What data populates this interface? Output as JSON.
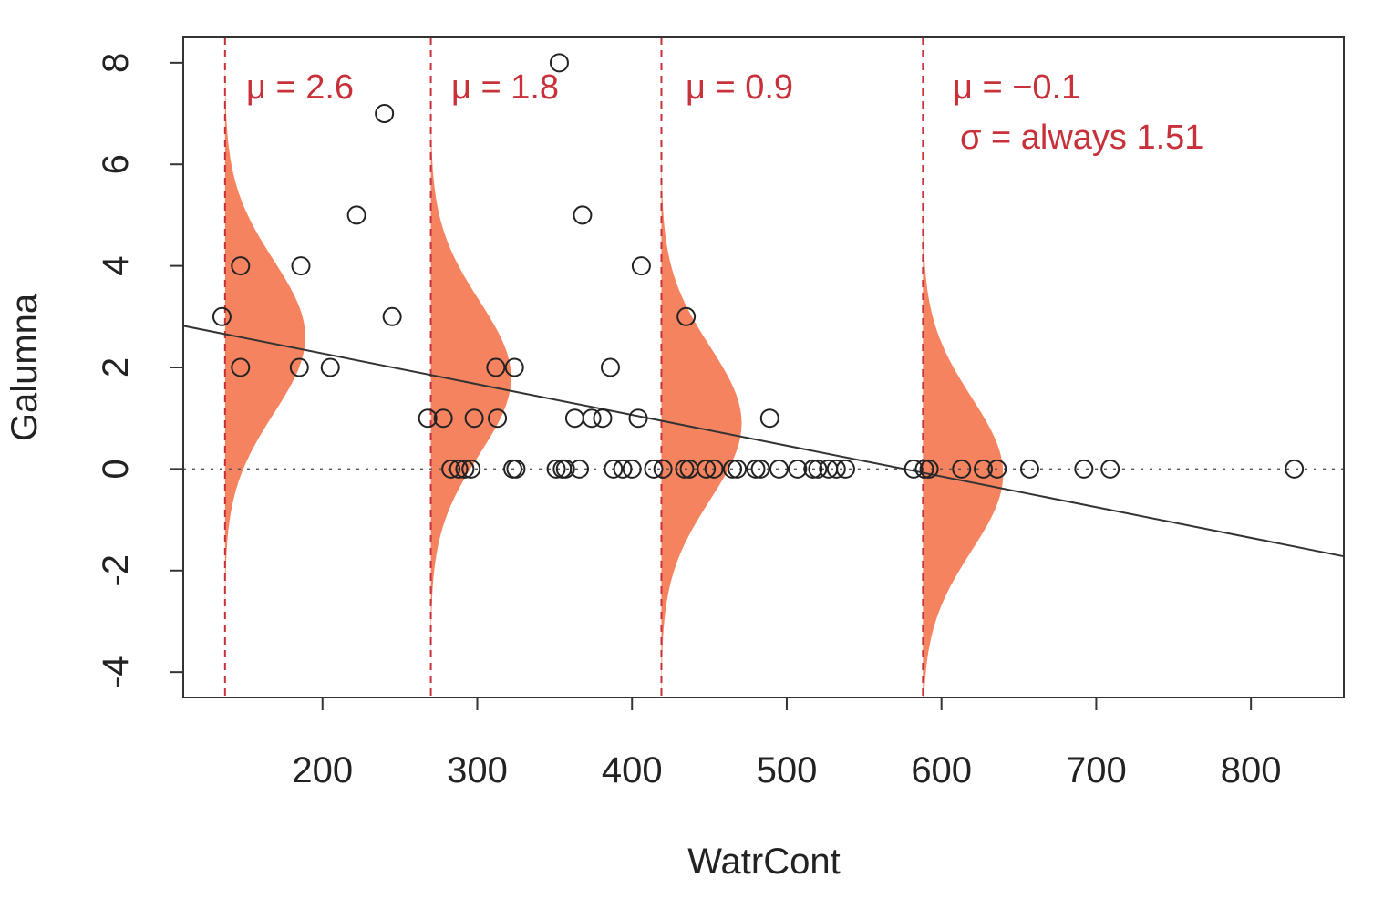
{
  "chart_data": {
    "type": "scatter",
    "title": "",
    "xlabel": "WatrCont",
    "ylabel": "Galumna",
    "xlim": [
      110,
      860
    ],
    "ylim": [
      -4.5,
      8.5
    ],
    "x_ticks": [
      200,
      300,
      400,
      500,
      600,
      700,
      800
    ],
    "y_ticks": [
      -4,
      -2,
      0,
      2,
      4,
      6,
      8
    ],
    "grid": false,
    "legend": "none",
    "points": [
      {
        "x": 135,
        "y": 3
      },
      {
        "x": 147,
        "y": 4
      },
      {
        "x": 147,
        "y": 2
      },
      {
        "x": 186,
        "y": 4
      },
      {
        "x": 185,
        "y": 2
      },
      {
        "x": 205,
        "y": 2
      },
      {
        "x": 222,
        "y": 5
      },
      {
        "x": 240,
        "y": 7
      },
      {
        "x": 245,
        "y": 3
      },
      {
        "x": 268,
        "y": 1
      },
      {
        "x": 278,
        "y": 1
      },
      {
        "x": 298,
        "y": 1
      },
      {
        "x": 312,
        "y": 2
      },
      {
        "x": 324,
        "y": 2
      },
      {
        "x": 313,
        "y": 1
      },
      {
        "x": 353,
        "y": 8
      },
      {
        "x": 368,
        "y": 5
      },
      {
        "x": 406,
        "y": 4
      },
      {
        "x": 386,
        "y": 2
      },
      {
        "x": 435,
        "y": 3
      },
      {
        "x": 363,
        "y": 1
      },
      {
        "x": 374,
        "y": 1
      },
      {
        "x": 381,
        "y": 1
      },
      {
        "x": 404,
        "y": 1
      },
      {
        "x": 489,
        "y": 1
      },
      {
        "x": 283,
        "y": 0
      },
      {
        "x": 288,
        "y": 0
      },
      {
        "x": 292,
        "y": 0
      },
      {
        "x": 296,
        "y": 0
      },
      {
        "x": 323,
        "y": 0
      },
      {
        "x": 325,
        "y": 0
      },
      {
        "x": 351,
        "y": 0
      },
      {
        "x": 355,
        "y": 0
      },
      {
        "x": 357,
        "y": 0
      },
      {
        "x": 366,
        "y": 0
      },
      {
        "x": 388,
        "y": 0
      },
      {
        "x": 394,
        "y": 0
      },
      {
        "x": 400,
        "y": 0
      },
      {
        "x": 414,
        "y": 0
      },
      {
        "x": 420,
        "y": 0
      },
      {
        "x": 434,
        "y": 0
      },
      {
        "x": 437,
        "y": 0
      },
      {
        "x": 448,
        "y": 0
      },
      {
        "x": 453,
        "y": 0
      },
      {
        "x": 465,
        "y": 0
      },
      {
        "x": 468,
        "y": 0
      },
      {
        "x": 480,
        "y": 0
      },
      {
        "x": 483,
        "y": 0
      },
      {
        "x": 495,
        "y": 0
      },
      {
        "x": 507,
        "y": 0
      },
      {
        "x": 517,
        "y": 0
      },
      {
        "x": 520,
        "y": 0
      },
      {
        "x": 527,
        "y": 0
      },
      {
        "x": 532,
        "y": 0
      },
      {
        "x": 538,
        "y": 0
      },
      {
        "x": 582,
        "y": 0
      },
      {
        "x": 589,
        "y": 0
      },
      {
        "x": 592,
        "y": 0
      },
      {
        "x": 613,
        "y": 0
      },
      {
        "x": 627,
        "y": 0
      },
      {
        "x": 636,
        "y": 0
      },
      {
        "x": 657,
        "y": 0
      },
      {
        "x": 692,
        "y": 0
      },
      {
        "x": 709,
        "y": 0
      },
      {
        "x": 828,
        "y": 0
      }
    ],
    "regression_line": {
      "x": [
        110,
        860
      ],
      "y": [
        2.82,
        -1.72
      ]
    },
    "zero_reference_line": 0,
    "normal_curves": [
      {
        "x": 137,
        "mu": 2.6,
        "sigma": 1.51
      },
      {
        "x": 270,
        "mu": 1.8,
        "sigma": 1.51
      },
      {
        "x": 419,
        "mu": 0.9,
        "sigma": 1.51
      },
      {
        "x": 588,
        "mu": -0.1,
        "sigma": 1.51
      }
    ],
    "colors": {
      "curve_fill": "#f5835f",
      "annotation": "#c8303a",
      "points": "#222222",
      "line": "#333333"
    },
    "annotations": [
      "μ = 2.6",
      "μ = 1.8",
      "μ = 0.9",
      "μ = −0.1",
      "σ = always 1.51"
    ]
  }
}
